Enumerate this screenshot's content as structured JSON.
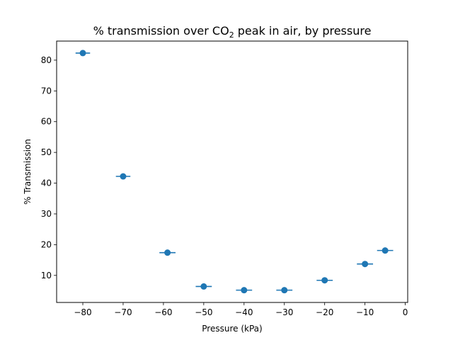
{
  "chart_data": {
    "type": "scatter",
    "title_main": "% transmission over CO",
    "title_sub": "2",
    "title_rest": " peak in air, by pressure",
    "xlabel": "Pressure (kPa)",
    "ylabel": "% Transmission",
    "xlim": [
      -86.5,
      0.6
    ],
    "ylim": [
      1.2,
      86.2
    ],
    "xticks": [
      -80,
      -70,
      -60,
      -50,
      -40,
      -30,
      -20,
      -10,
      0
    ],
    "yticks": [
      10,
      20,
      30,
      40,
      50,
      60,
      70,
      80
    ],
    "grid": false,
    "marker_color": "#1f77b4",
    "points": [
      {
        "x": -80,
        "y": 82.3,
        "xerr": 1.8
      },
      {
        "x": -70,
        "y": 42.2,
        "xerr": 1.8
      },
      {
        "x": -59,
        "y": 17.4,
        "xerr": 2.0
      },
      {
        "x": -50,
        "y": 6.4,
        "xerr": 2.0
      },
      {
        "x": -40,
        "y": 5.2,
        "xerr": 2.0
      },
      {
        "x": -30,
        "y": 5.2,
        "xerr": 2.0
      },
      {
        "x": -20,
        "y": 8.4,
        "xerr": 2.0
      },
      {
        "x": -10,
        "y": 13.7,
        "xerr": 2.0
      },
      {
        "x": -5,
        "y": 18.1,
        "xerr": 2.0
      }
    ]
  }
}
